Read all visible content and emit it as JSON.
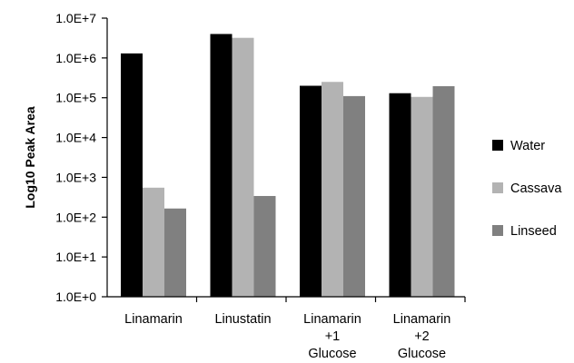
{
  "chart_data": {
    "type": "bar",
    "title": "",
    "xlabel": "",
    "ylabel": "Log10 Peak Area",
    "yscale": "log",
    "ylim": [
      1,
      10000000
    ],
    "grid": false,
    "legend_position": "right",
    "yticks": [
      {
        "value": 1,
        "label": "1.0E+0"
      },
      {
        "value": 10,
        "label": "1.0E+1"
      },
      {
        "value": 100,
        "label": "1.0E+2"
      },
      {
        "value": 1000,
        "label": "1.0E+3"
      },
      {
        "value": 10000,
        "label": "1.0E+4"
      },
      {
        "value": 100000,
        "label": "1.0E+5"
      },
      {
        "value": 1000000,
        "label": "1.0E+6"
      },
      {
        "value": 10000000,
        "label": "1.0E+7"
      }
    ],
    "categories": [
      [
        "Linamarin"
      ],
      [
        "Linustatin"
      ],
      [
        "Linamarin",
        "+1",
        "Glucose"
      ],
      [
        "Linamarin",
        "+2",
        "Glucose"
      ]
    ],
    "series": [
      {
        "name": "Water",
        "color": "#000000",
        "values": [
          1300000,
          4000000,
          200000,
          130000
        ]
      },
      {
        "name": "Cassava",
        "color": "#b3b3b3",
        "values": [
          550,
          3200000,
          250000,
          105000
        ]
      },
      {
        "name": "Linseed",
        "color": "#808080",
        "values": [
          165,
          340,
          110000,
          195000
        ]
      }
    ]
  }
}
